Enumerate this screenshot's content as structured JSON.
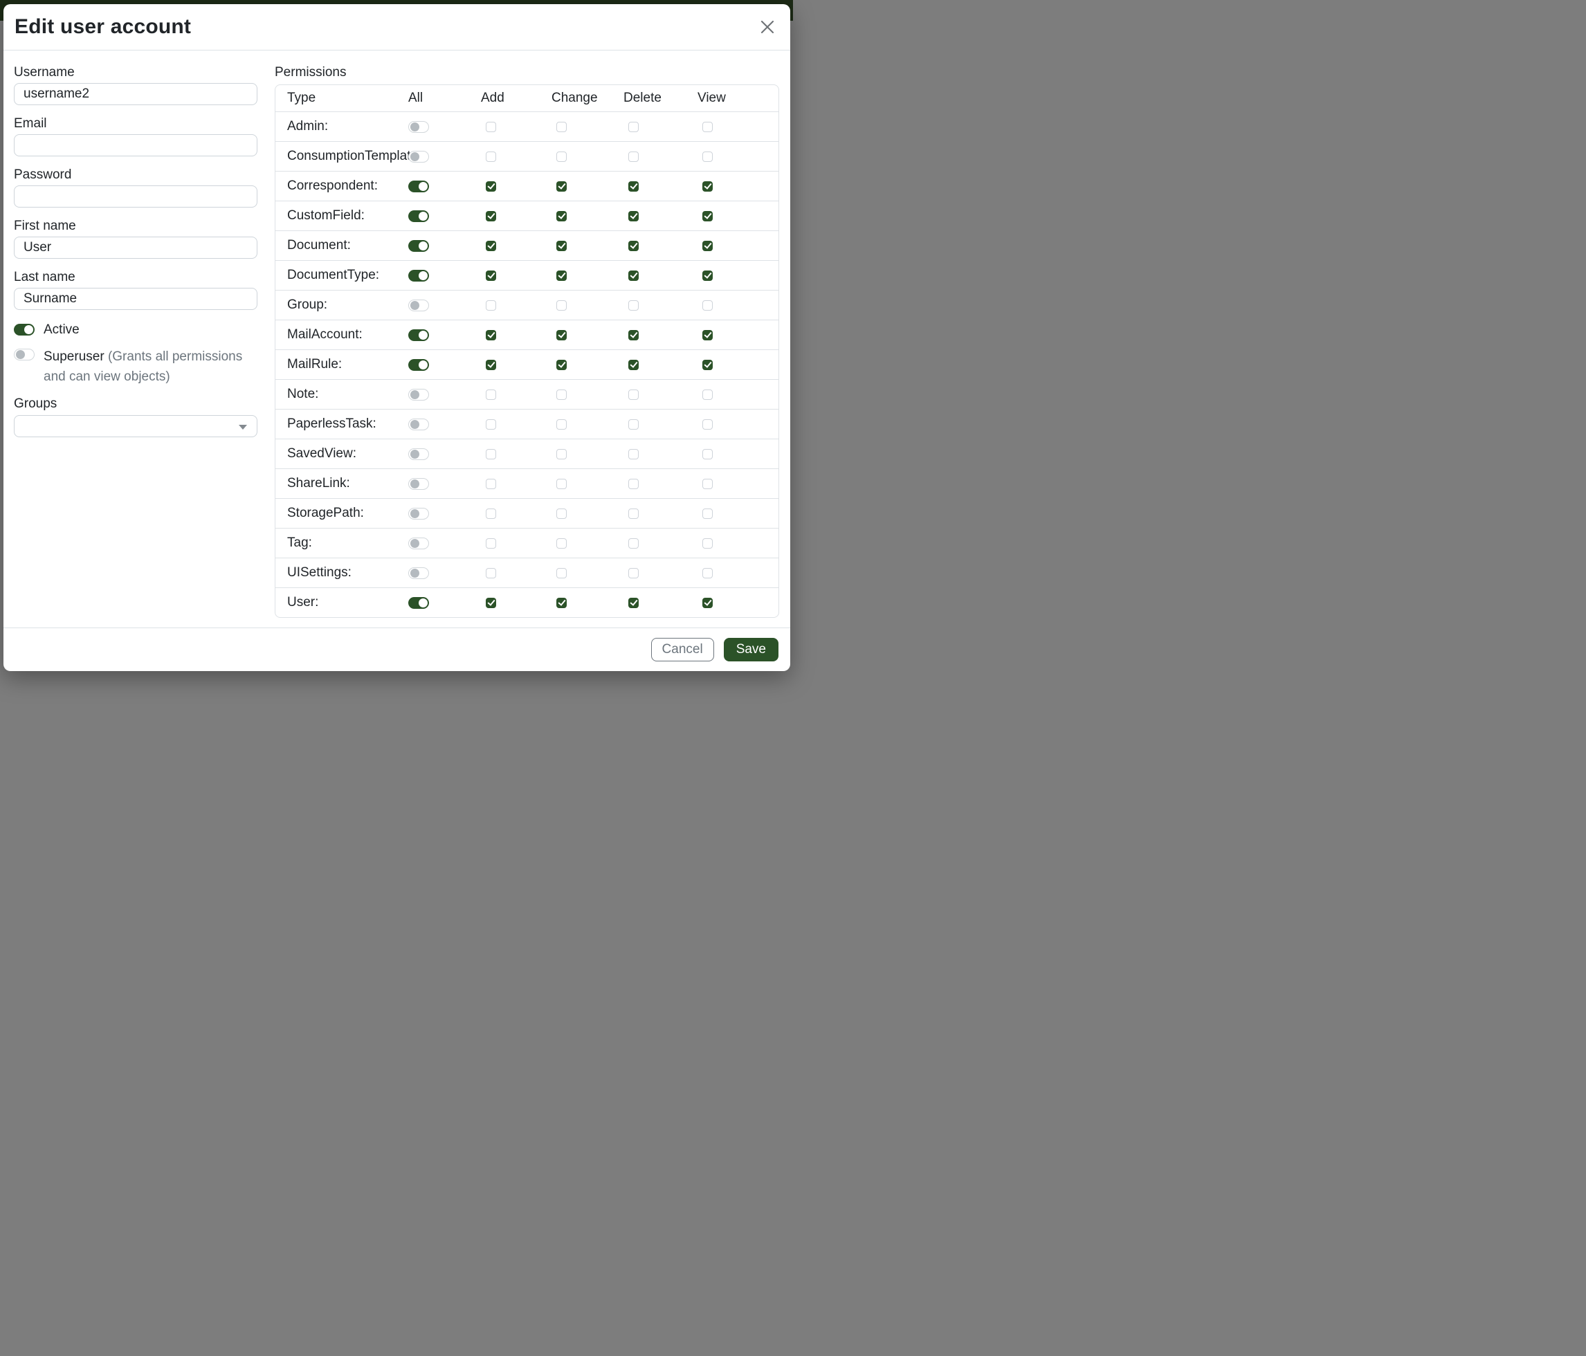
{
  "modal": {
    "title": "Edit user account",
    "close_icon": "x-icon"
  },
  "form": {
    "username": {
      "label": "Username",
      "value": "username2"
    },
    "email": {
      "label": "Email",
      "value": ""
    },
    "password": {
      "label": "Password",
      "value": ""
    },
    "first_name": {
      "label": "First name",
      "value": "User"
    },
    "last_name": {
      "label": "Last name",
      "value": "Surname"
    },
    "active": {
      "label": "Active",
      "checked": true
    },
    "superuser": {
      "label": "Superuser",
      "hint": "(Grants all permissions and can view objects)",
      "checked": false
    },
    "groups": {
      "label": "Groups",
      "value": ""
    }
  },
  "permissions": {
    "label": "Permissions",
    "columns": [
      "Type",
      "All",
      "Add",
      "Change",
      "Delete",
      "View"
    ],
    "rows": [
      {
        "type": "Admin:",
        "all": false,
        "add": false,
        "change": false,
        "delete": false,
        "view": false
      },
      {
        "type": "ConsumptionTemplate:",
        "all": false,
        "add": false,
        "change": false,
        "delete": false,
        "view": false
      },
      {
        "type": "Correspondent:",
        "all": true,
        "add": true,
        "change": true,
        "delete": true,
        "view": true
      },
      {
        "type": "CustomField:",
        "all": true,
        "add": true,
        "change": true,
        "delete": true,
        "view": true
      },
      {
        "type": "Document:",
        "all": true,
        "add": true,
        "change": true,
        "delete": true,
        "view": true
      },
      {
        "type": "DocumentType:",
        "all": true,
        "add": true,
        "change": true,
        "delete": true,
        "view": true
      },
      {
        "type": "Group:",
        "all": false,
        "add": false,
        "change": false,
        "delete": false,
        "view": false
      },
      {
        "type": "MailAccount:",
        "all": true,
        "add": true,
        "change": true,
        "delete": true,
        "view": true
      },
      {
        "type": "MailRule:",
        "all": true,
        "add": true,
        "change": true,
        "delete": true,
        "view": true
      },
      {
        "type": "Note:",
        "all": false,
        "add": false,
        "change": false,
        "delete": false,
        "view": false
      },
      {
        "type": "PaperlessTask:",
        "all": false,
        "add": false,
        "change": false,
        "delete": false,
        "view": false
      },
      {
        "type": "SavedView:",
        "all": false,
        "add": false,
        "change": false,
        "delete": false,
        "view": false
      },
      {
        "type": "ShareLink:",
        "all": false,
        "add": false,
        "change": false,
        "delete": false,
        "view": false
      },
      {
        "type": "StoragePath:",
        "all": false,
        "add": false,
        "change": false,
        "delete": false,
        "view": false
      },
      {
        "type": "Tag:",
        "all": false,
        "add": false,
        "change": false,
        "delete": false,
        "view": false
      },
      {
        "type": "UISettings:",
        "all": false,
        "add": false,
        "change": false,
        "delete": false,
        "view": false
      },
      {
        "type": "User:",
        "all": true,
        "add": true,
        "change": true,
        "delete": true,
        "view": true
      }
    ]
  },
  "footer": {
    "cancel_label": "Cancel",
    "save_label": "Save"
  },
  "colors": {
    "primary_green": "#2b5228",
    "backdrop_gray": "#7d7d7d",
    "navbar_green": "#1d2b16"
  }
}
